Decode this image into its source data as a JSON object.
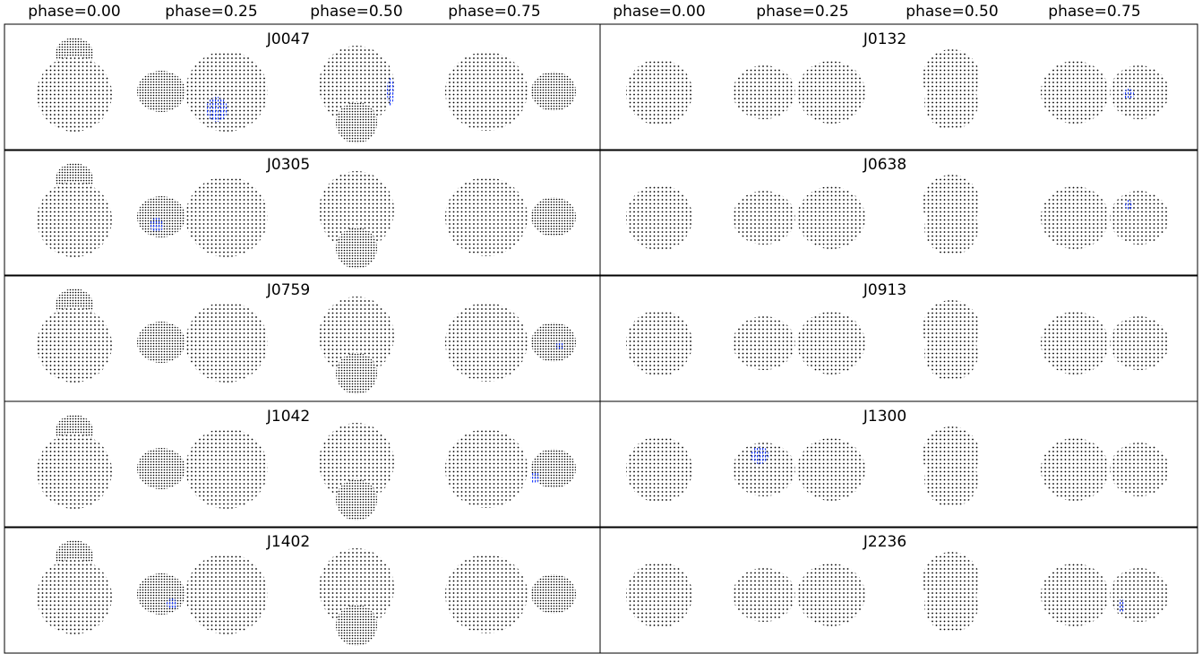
{
  "header": {
    "phases": [
      "phase=0.00",
      "phase=0.25",
      "phase=0.50",
      "phase=0.75",
      "phase=0.00",
      "phase=0.25",
      "phase=0.50",
      "phase=0.75"
    ]
  },
  "panels": [
    {
      "label": "J0047"
    },
    {
      "label": "J0132"
    },
    {
      "label": "J0305"
    },
    {
      "label": "J0638"
    },
    {
      "label": "J0759"
    },
    {
      "label": "J0913"
    },
    {
      "label": "J1042"
    },
    {
      "label": "J1300"
    },
    {
      "label": "J1402"
    },
    {
      "label": "J2236"
    }
  ]
}
